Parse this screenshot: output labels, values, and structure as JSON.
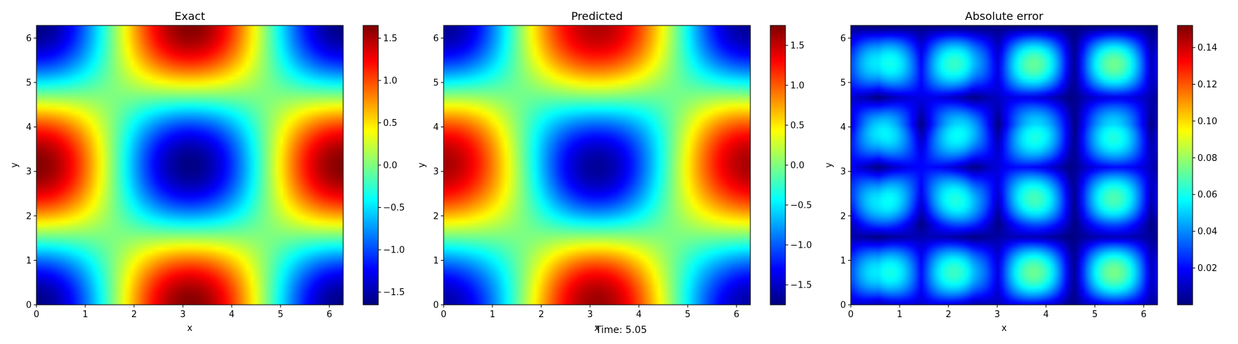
{
  "figure": {
    "footer": "Time: 5.05"
  },
  "chart_data": [
    {
      "type": "heatmap",
      "title": "Exact",
      "xlabel": "x",
      "ylabel": "y",
      "xlim": [
        0,
        6.283
      ],
      "ylim": [
        0,
        6.283
      ],
      "x_ticks": [
        "0",
        "1",
        "2",
        "3",
        "4",
        "5",
        "6"
      ],
      "y_ticks": [
        "0",
        "1",
        "2",
        "3",
        "4",
        "5",
        "6"
      ],
      "field": "cos(x)*cos(y)-like pattern: u ≈ -1.63 * cos(x) * cos(y), evaluated on 0..2π",
      "colormap": "jet",
      "colorbar": {
        "vmin": -1.65,
        "vmax": 1.65,
        "ticks": [
          -1.5,
          -1.0,
          -0.5,
          0.0,
          0.5,
          1.0,
          1.5
        ],
        "tick_labels": [
          "−1.5",
          "−1.0",
          "−0.5",
          "0.0",
          "0.5",
          "1.0",
          "1.5"
        ]
      }
    },
    {
      "type": "heatmap",
      "title": "Predicted",
      "xlabel": "x",
      "ylabel": "y",
      "xlim": [
        0,
        6.283
      ],
      "ylim": [
        0,
        6.283
      ],
      "x_ticks": [
        "0",
        "1",
        "2",
        "3",
        "4",
        "5",
        "6"
      ],
      "y_ticks": [
        "0",
        "1",
        "2",
        "3",
        "4",
        "5",
        "6"
      ],
      "colormap": "jet",
      "colorbar": {
        "vmin": -1.75,
        "vmax": 1.75,
        "ticks": [
          -1.5,
          -1.0,
          -0.5,
          0.0,
          0.5,
          1.0,
          1.5
        ],
        "tick_labels": [
          "−1.5",
          "−1.0",
          "−0.5",
          "0.0",
          "0.5",
          "1.0",
          "1.5"
        ]
      }
    },
    {
      "type": "heatmap",
      "title": "Absolute error",
      "xlabel": "x",
      "ylabel": "y",
      "xlim": [
        0,
        6.283
      ],
      "ylim": [
        0,
        6.283
      ],
      "x_ticks": [
        "0",
        "1",
        "2",
        "3",
        "4",
        "5",
        "6"
      ],
      "y_ticks": [
        "0",
        "1",
        "2",
        "3",
        "4",
        "5",
        "6"
      ],
      "colormap": "jet",
      "colorbar": {
        "vmin": 0.0,
        "vmax": 0.152,
        "ticks": [
          0.02,
          0.04,
          0.06,
          0.08,
          0.1,
          0.12,
          0.14
        ],
        "tick_labels": [
          "0.02",
          "0.04",
          "0.06",
          "0.08",
          "0.10",
          "0.12",
          "0.14"
        ]
      }
    }
  ]
}
